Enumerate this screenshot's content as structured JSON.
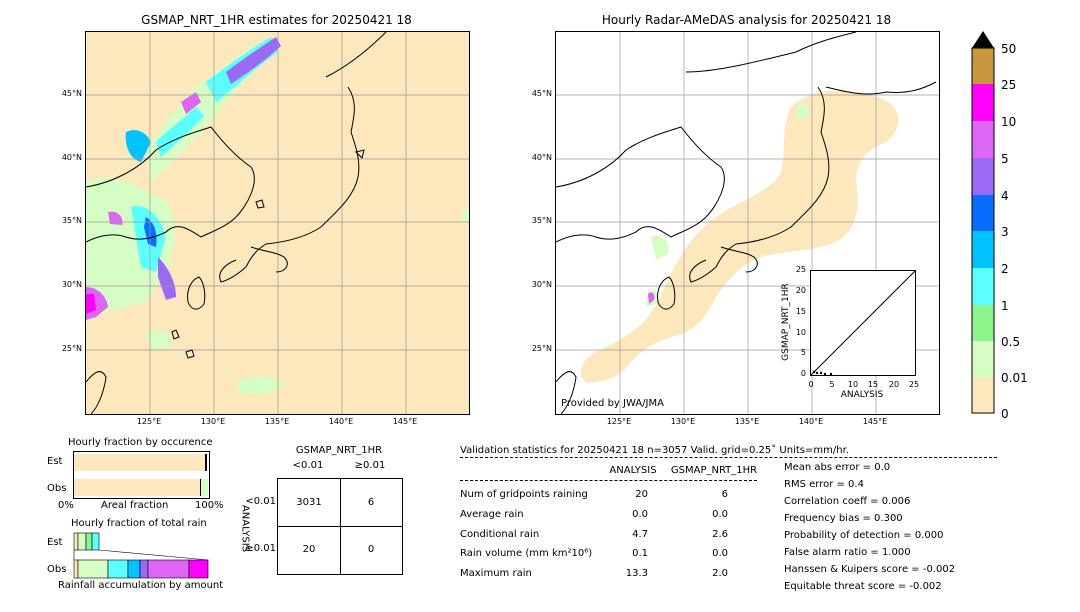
{
  "left_map": {
    "title": "GSMAP_NRT_1HR estimates for 20250421 18",
    "lat_labels": [
      "45°N",
      "40°N",
      "35°N",
      "30°N",
      "25°N"
    ],
    "lon_labels": [
      "125°E",
      "130°E",
      "135°E",
      "140°E",
      "145°E"
    ]
  },
  "right_map": {
    "title": "Hourly Radar-AMeDAS analysis for 20250421 18",
    "lat_labels": [
      "45°N",
      "40°N",
      "35°N",
      "30°N",
      "25°N"
    ],
    "lon_labels": [
      "125°E",
      "130°E",
      "135°E",
      "140°E",
      "145°E"
    ],
    "credit": "Provided by JWA/JMA"
  },
  "scatter_inset": {
    "ylabel": "GSMAP_NRT_1HR",
    "xlabel": "ANALYSIS",
    "ticks": [
      "0",
      "5",
      "10",
      "15",
      "20",
      "25"
    ]
  },
  "colorbar": {
    "labels": [
      "50",
      "25",
      "10",
      "5",
      "4",
      "3",
      "2",
      "1",
      "0.5",
      "0.01",
      "0"
    ],
    "colors": [
      "#c8963c",
      "#ff00ff",
      "#dd66f5",
      "#9a6af5",
      "#0a6cff",
      "#00c3ff",
      "#5cffff",
      "#8cf58a",
      "#d6fdc4",
      "#fde8bd"
    ]
  },
  "fraction_occurrence": {
    "title": "Hourly fraction by occurence",
    "rows": [
      "Est",
      "Obs"
    ],
    "axis_left": "0%",
    "axis_mid": "Areal fraction",
    "axis_right": "100%"
  },
  "fraction_total": {
    "title": "Hourly fraction of total rain",
    "rows": [
      "Est",
      "Obs"
    ],
    "footer": "Rainfall accumulation by amount"
  },
  "contingency": {
    "title": "GSMAP_NRT_1HR",
    "col_headers": [
      "<0.01",
      "≥0.01"
    ],
    "row_axis_label": "ANALYSIS",
    "row_headers": [
      "<0.01",
      "≥0.01"
    ],
    "cells": [
      [
        "3031",
        "6"
      ],
      [
        "20",
        "0"
      ]
    ]
  },
  "validation": {
    "header": "Validation statistics for 20250421 18  n=3057 Valid. grid=0.25˚ Units=mm/hr.",
    "col_analysis": "ANALYSIS",
    "col_gsmap": "GSMAP_NRT_1HR",
    "rows": [
      {
        "label": "Num of gridpoints raining",
        "analysis": "20",
        "gsmap": "6"
      },
      {
        "label": "Average rain",
        "analysis": "0.0",
        "gsmap": "0.0"
      },
      {
        "label": "Conditional rain",
        "analysis": "4.7",
        "gsmap": "2.6"
      },
      {
        "label": "Rain volume (mm km²10⁶)",
        "analysis": "0.1",
        "gsmap": "0.0"
      },
      {
        "label": "Maximum rain",
        "analysis": "13.3",
        "gsmap": "2.0"
      }
    ],
    "scores": [
      "Mean abs error =    0.0",
      "RMS error =    0.4",
      "Correlation coeff =  0.006",
      "Frequency bias =  0.300",
      "Probability of detection =  0.000",
      "False alarm ratio =  1.000",
      "Hanssen & Kuipers score = -0.002",
      "Equitable threat score = -0.002"
    ]
  }
}
